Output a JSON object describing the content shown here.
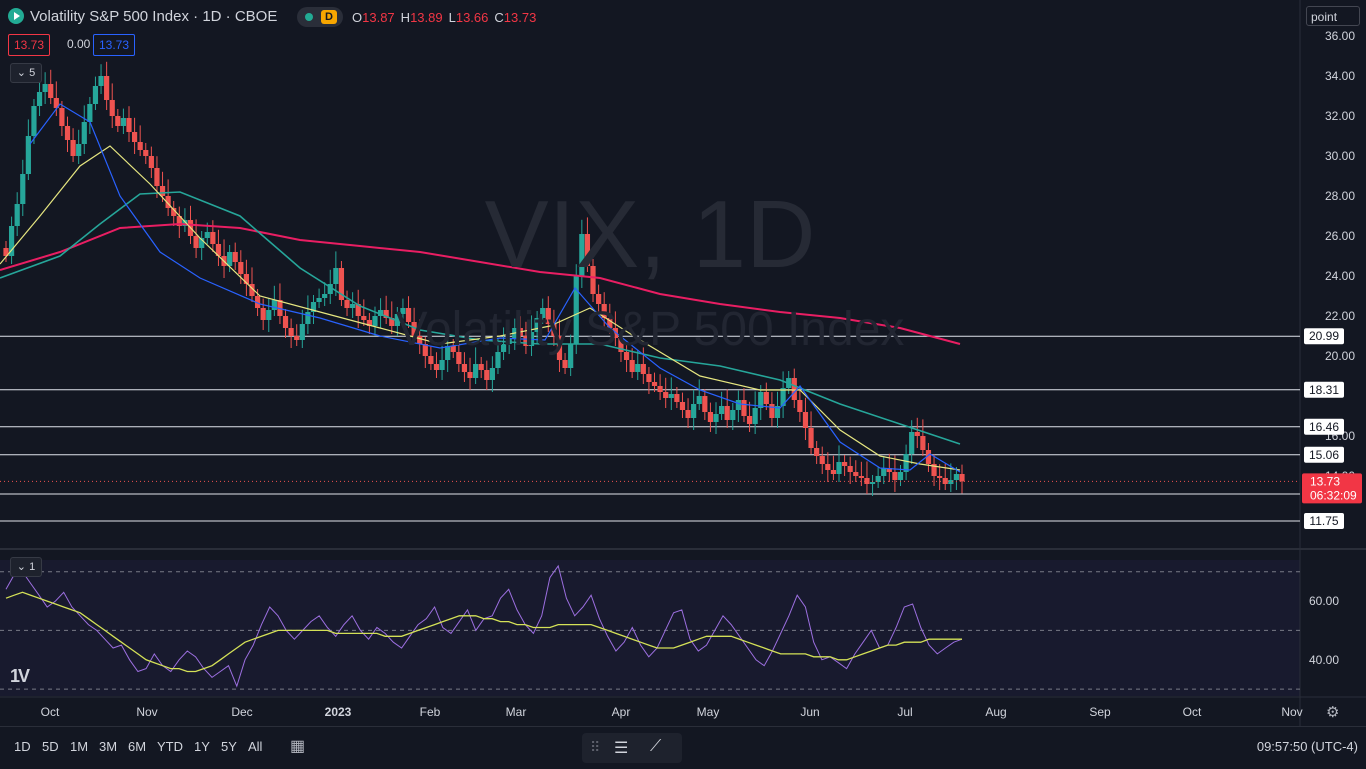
{
  "header": {
    "title": "Volatility S&P 500 Index · 1D · CBOE",
    "session_badge": "D",
    "ohlc": [
      {
        "k": "O",
        "v": "13.87"
      },
      {
        "k": "H",
        "v": "13.89"
      },
      {
        "k": "L",
        "v": "13.66"
      },
      {
        "k": "C",
        "v": "13.73"
      }
    ],
    "bid": "13.73",
    "spread": "0.00",
    "ask": "13.73",
    "indicator_count": "5",
    "rsi_indicator_count": "1",
    "scale_mode": "point"
  },
  "watermark": {
    "symbol": "VIX, 1D",
    "name": "Volatility S&P 500 Index"
  },
  "colors": {
    "background": "#131722",
    "up": "#26a69a",
    "down": "#ef5350",
    "ema_fast": "#2962ff",
    "ema_mid": "#e6e680",
    "ema_slow": "#26a69a",
    "ema_200": "#e91e63",
    "rsi": "#9c6fe0",
    "rsi_ma": "#d4e157"
  },
  "chart_data": [
    {
      "type": "candlestick",
      "symbol": "VIX",
      "ylim": [
        11.2,
        36.2
      ],
      "y_ticks": [
        "36.00",
        "34.00",
        "32.00",
        "30.00",
        "28.00",
        "26.00",
        "24.00",
        "22.00",
        "20.00",
        "16.00",
        "14.00"
      ],
      "x_ticks": [
        "Oct",
        "Nov",
        "Dec",
        "2023",
        "Feb",
        "Mar",
        "Apr",
        "May",
        "Jun",
        "Jul",
        "Aug",
        "Sep",
        "Oct",
        "Nov"
      ],
      "price_levels": [
        "20.99",
        "18.31",
        "16.46",
        "15.06",
        "13.10",
        "11.75"
      ],
      "last_price": "13.73",
      "countdown": "06:32:09",
      "closes": [
        25.0,
        26.5,
        27.6,
        29.1,
        31.0,
        32.5,
        33.2,
        33.6,
        32.9,
        32.4,
        31.5,
        30.8,
        30.0,
        30.6,
        31.7,
        32.6,
        33.5,
        34.0,
        32.8,
        32.0,
        31.5,
        31.9,
        31.2,
        30.7,
        30.3,
        30.0,
        29.4,
        28.5,
        28.0,
        27.4,
        27.0,
        26.5,
        26.8,
        26.0,
        25.4,
        25.9,
        26.2,
        25.6,
        25.0,
        24.5,
        25.2,
        24.7,
        24.1,
        23.6,
        23.0,
        22.4,
        21.8,
        22.3,
        22.8,
        22.0,
        21.4,
        21.0,
        20.8,
        21.6,
        22.2,
        22.7,
        22.9,
        23.1,
        23.6,
        24.4,
        22.8,
        22.4,
        22.6,
        22.0,
        21.8,
        21.5,
        22.0,
        22.3,
        21.9,
        21.5,
        22.1,
        22.4,
        21.7,
        21.0,
        20.6,
        20.0,
        19.6,
        19.3,
        19.8,
        20.5,
        20.2,
        19.6,
        19.2,
        18.9,
        19.6,
        19.3,
        18.8,
        19.4,
        20.2,
        20.6,
        20.9,
        21.4,
        21.0,
        20.5,
        21.2,
        21.9,
        22.4,
        21.6,
        21.0,
        19.8,
        19.4,
        20.6,
        24.0,
        26.1,
        24.5,
        23.1,
        22.6,
        21.9,
        21.4,
        20.9,
        20.2,
        19.8,
        19.2,
        19.6,
        19.1,
        18.7,
        18.5,
        18.2,
        17.9,
        18.1,
        17.7,
        17.3,
        16.9,
        17.6,
        18.0,
        17.2,
        16.7,
        17.1,
        17.5,
        16.8,
        17.3,
        17.8,
        17.0,
        16.6,
        17.4,
        18.2,
        17.6,
        16.9,
        17.5,
        18.4,
        18.9,
        17.8,
        17.2,
        16.4,
        15.4,
        15.0,
        14.6,
        14.3,
        14.1,
        14.7,
        14.5,
        14.2,
        14.0,
        13.9,
        13.6,
        13.7,
        14.0,
        14.4,
        14.2,
        13.8,
        14.2,
        15.1,
        16.2,
        16.0,
        15.3,
        14.6,
        14.0,
        13.9,
        13.6,
        13.8,
        14.1,
        13.73
      ],
      "ema_fast": {
        "from": 30.0,
        "pts": [
          [
            30,
            30.6
          ],
          [
            60,
            32.6
          ],
          [
            90,
            31.7
          ],
          [
            120,
            28.0
          ],
          [
            160,
            25.2
          ],
          [
            200,
            23.9
          ],
          [
            260,
            22.6
          ],
          [
            320,
            21.9
          ],
          [
            380,
            21.0
          ],
          [
            440,
            20.4
          ],
          [
            500,
            20.9
          ],
          [
            545,
            20.8
          ],
          [
            575,
            23.4
          ],
          [
            610,
            21.4
          ],
          [
            660,
            19.4
          ],
          [
            700,
            18.3
          ],
          [
            740,
            17.6
          ],
          [
            780,
            17.4
          ],
          [
            800,
            18.5
          ],
          [
            840,
            15.7
          ],
          [
            880,
            14.4
          ],
          [
            910,
            14.3
          ],
          [
            930,
            15.1
          ],
          [
            960,
            14.2
          ]
        ]
      },
      "ema_mid": {
        "pts": [
          [
            0,
            24.6
          ],
          [
            40,
            27.0
          ],
          [
            80,
            29.5
          ],
          [
            110,
            30.5
          ],
          [
            150,
            28.6
          ],
          [
            200,
            25.9
          ],
          [
            260,
            23.0
          ],
          [
            320,
            22.2
          ],
          [
            380,
            21.4
          ],
          [
            440,
            20.6
          ],
          [
            500,
            21.0
          ],
          [
            550,
            21.5
          ],
          [
            590,
            22.4
          ],
          [
            640,
            20.8
          ],
          [
            700,
            19.0
          ],
          [
            760,
            18.3
          ],
          [
            800,
            18.3
          ],
          [
            840,
            16.3
          ],
          [
            880,
            15.0
          ],
          [
            920,
            14.6
          ],
          [
            960,
            14.3
          ]
        ]
      },
      "ema_slow": {
        "pts": [
          [
            0,
            23.9
          ],
          [
            60,
            25.0
          ],
          [
            100,
            26.6
          ],
          [
            140,
            28.1
          ],
          [
            180,
            28.2
          ],
          [
            240,
            27.0
          ],
          [
            300,
            24.4
          ],
          [
            360,
            22.5
          ],
          [
            420,
            21.3
          ],
          [
            480,
            20.8
          ],
          [
            540,
            20.6
          ],
          [
            600,
            20.6
          ],
          [
            660,
            19.9
          ],
          [
            720,
            19.5
          ],
          [
            780,
            18.8
          ],
          [
            840,
            17.6
          ],
          [
            900,
            16.6
          ],
          [
            960,
            15.6
          ]
        ]
      },
      "ema_200": {
        "pts": [
          [
            0,
            24.3
          ],
          [
            60,
            25.2
          ],
          [
            120,
            26.4
          ],
          [
            180,
            26.6
          ],
          [
            240,
            26.4
          ],
          [
            300,
            25.8
          ],
          [
            360,
            25.5
          ],
          [
            420,
            25.2
          ],
          [
            480,
            24.7
          ],
          [
            540,
            24.2
          ],
          [
            600,
            23.9
          ],
          [
            660,
            23.1
          ],
          [
            720,
            22.6
          ],
          [
            780,
            22.2
          ],
          [
            840,
            21.9
          ],
          [
            900,
            21.4
          ],
          [
            960,
            20.6
          ]
        ]
      }
    },
    {
      "type": "line",
      "name": "RSI",
      "ylim": [
        28,
        74
      ],
      "y_ticks": [
        "60.00",
        "40.00"
      ],
      "levels": [
        70,
        50,
        30
      ],
      "rsi": [
        64,
        69,
        70,
        66,
        62,
        58,
        60,
        63,
        58,
        55,
        52,
        50,
        47,
        44,
        45,
        40,
        36,
        37,
        42,
        38,
        36,
        40,
        43,
        41,
        37,
        34,
        36,
        38,
        31,
        40,
        45,
        52,
        58,
        55,
        50,
        47,
        50,
        53,
        55,
        51,
        48,
        52,
        55,
        50,
        47,
        51,
        49,
        46,
        44,
        48,
        52,
        54,
        58,
        51,
        49,
        53,
        57,
        50,
        54,
        55,
        61,
        64,
        57,
        52,
        49,
        55,
        68,
        72,
        61,
        55,
        58,
        62,
        54,
        48,
        43,
        46,
        51,
        45,
        41,
        44,
        50,
        56,
        57,
        47,
        43,
        45,
        50,
        55,
        52,
        48,
        44,
        40,
        38,
        43,
        49,
        55,
        62,
        58,
        46,
        40,
        41,
        39,
        37,
        42,
        46,
        50,
        44,
        45,
        51,
        58,
        59,
        51,
        45,
        42,
        44,
        46,
        47
      ],
      "rsi_ma": [
        61,
        62,
        63,
        62,
        61,
        60,
        59,
        58,
        57,
        56,
        54,
        52,
        50,
        48,
        46,
        44,
        42,
        40,
        39,
        38,
        37,
        37,
        36,
        36,
        37,
        38,
        40,
        42,
        44,
        46,
        47,
        48,
        49,
        50,
        50,
        50,
        50,
        50,
        50,
        50,
        49,
        49,
        49,
        49,
        49,
        49,
        48,
        48,
        48,
        49,
        50,
        51,
        52,
        53,
        54,
        55,
        55,
        55,
        54,
        54,
        53,
        53,
        52,
        52,
        51,
        51,
        51,
        52,
        52,
        52,
        52,
        52,
        51,
        50,
        49,
        48,
        47,
        46,
        45,
        44,
        44,
        44,
        45,
        46,
        47,
        48,
        48,
        48,
        48,
        47,
        46,
        45,
        44,
        43,
        42,
        42,
        42,
        42,
        41,
        41,
        41,
        40,
        40,
        41,
        42,
        43,
        44,
        45,
        45,
        46,
        46,
        46,
        47,
        47,
        47,
        47,
        47
      ]
    }
  ],
  "bottom": {
    "ranges": [
      "1D",
      "5D",
      "1M",
      "3M",
      "6M",
      "YTD",
      "1Y",
      "5Y",
      "All"
    ],
    "clock": "09:57:50 (UTC-4)"
  }
}
